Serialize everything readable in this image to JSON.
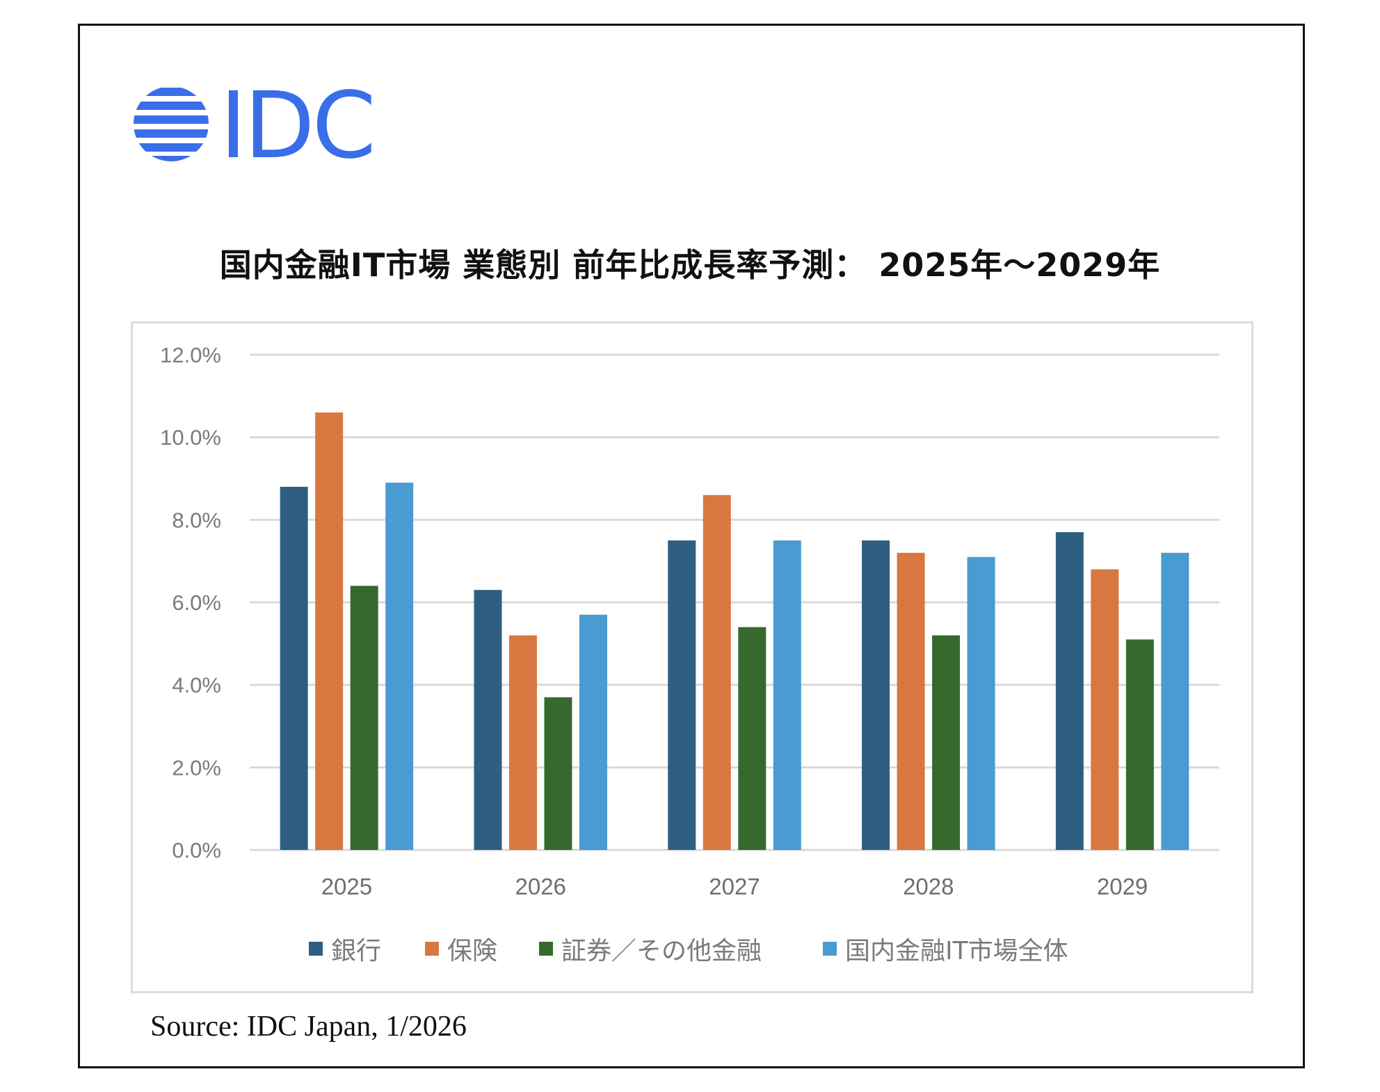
{
  "logo": {
    "text": "IDC",
    "color": "#3a6ee8"
  },
  "title": "国内金融IT市場 業態別 前年比成長率予測： 2025年～2029年",
  "source": "Source: IDC Japan, 1/2026",
  "chart_data": {
    "type": "bar",
    "title": "国内金融IT市場 業態別 前年比成長率予測： 2025年～2029年",
    "categories": [
      "2025",
      "2026",
      "2027",
      "2028",
      "2029"
    ],
    "ylim": [
      0,
      12
    ],
    "yticks": [
      0,
      2,
      4,
      6,
      8,
      10,
      12
    ],
    "ytick_labels": [
      "0.0%",
      "2.0%",
      "4.0%",
      "6.0%",
      "8.0%",
      "10.0%",
      "12.0%"
    ],
    "unit": "%",
    "grid": true,
    "legend_position": "bottom",
    "series": [
      {
        "name": "銀行",
        "color": "#2e5f80",
        "values": [
          8.8,
          6.3,
          7.5,
          7.5,
          7.7
        ]
      },
      {
        "name": "保険",
        "color": "#d97740",
        "values": [
          10.6,
          5.2,
          8.6,
          7.2,
          6.8
        ]
      },
      {
        "name": "証券／その他金融",
        "color": "#356a2c",
        "values": [
          6.4,
          3.7,
          5.4,
          5.2,
          5.1
        ]
      },
      {
        "name": "国内金融IT市場全体",
        "color": "#4a9bd1",
        "values": [
          8.9,
          5.7,
          7.5,
          7.1,
          7.2
        ]
      }
    ]
  }
}
